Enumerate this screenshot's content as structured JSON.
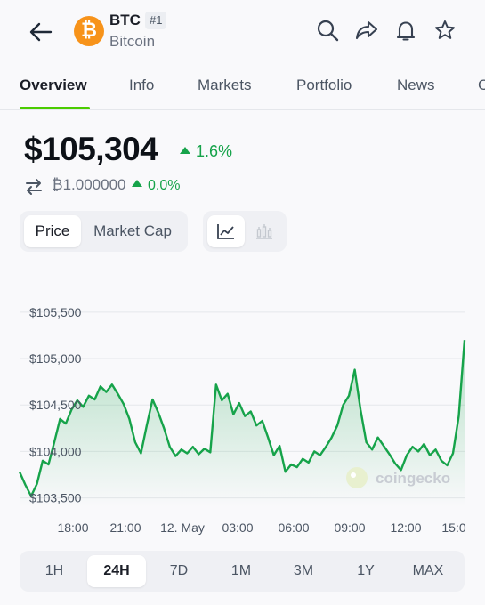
{
  "header": {
    "symbol": "BTC",
    "rank": "#1",
    "name": "Bitcoin",
    "coin_icon": "bitcoin-icon",
    "coin_glyph": "₿",
    "icons": [
      "back-arrow-icon",
      "search-icon",
      "share-icon",
      "bell-icon",
      "star-icon"
    ]
  },
  "tabs": [
    {
      "label": "Overview",
      "active": true
    },
    {
      "label": "Info"
    },
    {
      "label": "Markets"
    },
    {
      "label": "Portfolio"
    },
    {
      "label": "News"
    },
    {
      "label": "C"
    }
  ],
  "price": {
    "value": "$105,304",
    "change": "1.6%",
    "btc_value": "₿1.000000",
    "btc_change": "0.0%",
    "up_color": "#16a34a"
  },
  "chart_toggle": {
    "price_label": "Price",
    "marketcap_label": "Market Cap"
  },
  "chart_data": {
    "type": "area",
    "y_ticks": [
      "$105,500",
      "$105,000",
      "$104,500",
      "$104,000",
      "$103,500"
    ],
    "x_ticks": [
      "18:00",
      "21:00",
      "12. May",
      "03:00",
      "06:00",
      "09:00",
      "12:00",
      "15:0"
    ],
    "ylim": [
      103400,
      105700
    ],
    "series_color": "#16a34a",
    "watermark": "coingecko",
    "values": [
      103780,
      103640,
      103520,
      103650,
      103900,
      103860,
      104100,
      104350,
      104300,
      104450,
      104550,
      104480,
      104600,
      104560,
      104700,
      104640,
      104720,
      104620,
      104510,
      104350,
      104100,
      103980,
      104280,
      104560,
      104420,
      104250,
      104050,
      103950,
      104020,
      103980,
      104050,
      103970,
      104030,
      103990,
      104720,
      104550,
      104620,
      104400,
      104520,
      104380,
      104430,
      104280,
      104330,
      104150,
      103960,
      104060,
      103780,
      103860,
      103830,
      103920,
      103880,
      104000,
      103960,
      104050,
      104150,
      104280,
      104500,
      104600,
      104880,
      104450,
      104100,
      104020,
      104150,
      104060,
      103970,
      103870,
      103800,
      103960,
      104050,
      104000,
      104080,
      103960,
      104020,
      103900,
      103850,
      103980,
      104380,
      105200
    ]
  },
  "range": {
    "options": [
      "1H",
      "24H",
      "7D",
      "1M",
      "3M",
      "1Y",
      "MAX"
    ],
    "selected": "24H"
  }
}
